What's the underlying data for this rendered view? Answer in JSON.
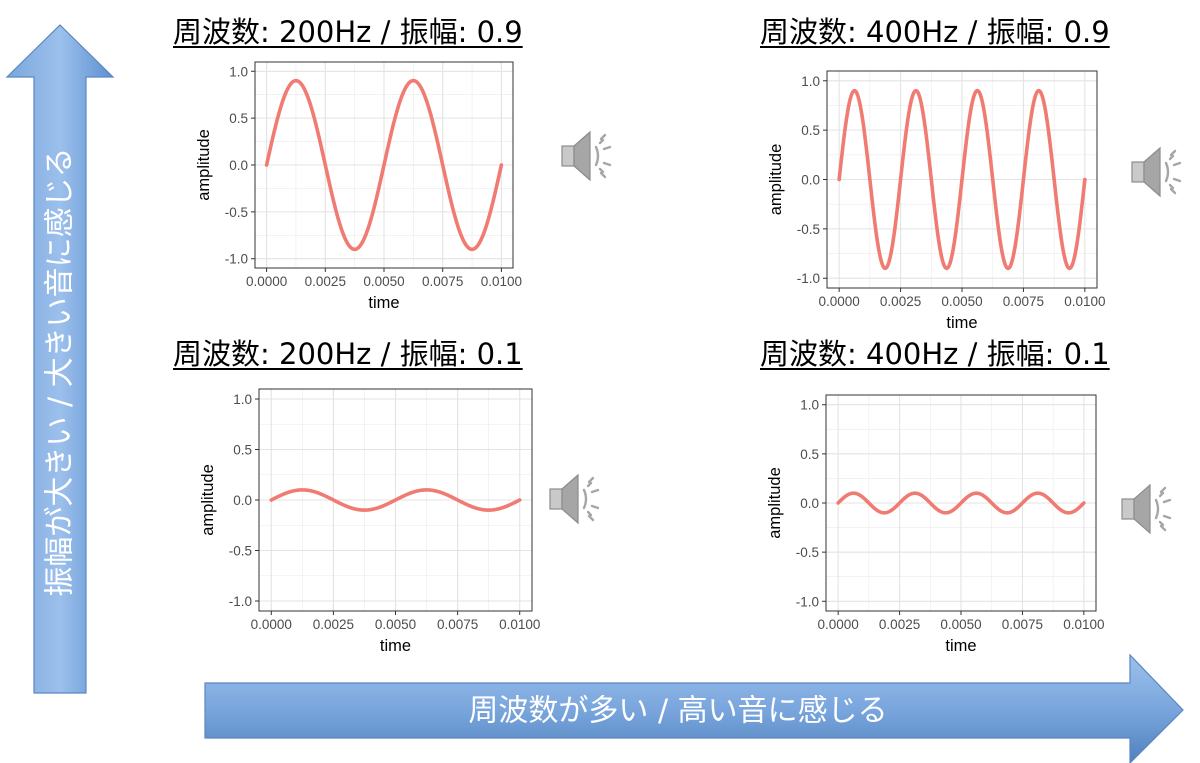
{
  "axis_labels": {
    "vertical": "振幅が大きい / 大きい音に感じる",
    "horizontal": "周波数が多い / 高い音に感じる"
  },
  "colors": {
    "wave": "#f07b72",
    "arrow_fill_light": "#8db3e2",
    "arrow_fill_dark": "#4f81bd",
    "grid": "#ebebeb",
    "speaker": "#a6a6a6"
  },
  "icons": {
    "speaker": "speaker-icon"
  },
  "panels": [
    {
      "title": "周波数: 200Hz / 振幅: 0.9"
    },
    {
      "title": "周波数: 400Hz / 振幅: 0.9"
    },
    {
      "title": "周波数: 200Hz / 振幅: 0.1"
    },
    {
      "title": "周波数: 400Hz / 振幅: 0.1"
    }
  ],
  "chart_data": [
    {
      "type": "line",
      "series": [
        {
          "function": "sine",
          "frequency_hz": 200,
          "amplitude": 0.9
        }
      ],
      "xlabel": "time",
      "ylabel": "amplitude",
      "xlim": [
        0,
        0.01
      ],
      "ylim": [
        -1,
        1
      ],
      "xticks": [
        "0.0000",
        "0.0025",
        "0.0050",
        "0.0075",
        "0.0100"
      ],
      "yticks": [
        "1.0",
        "0.5",
        "0.0",
        "-0.5",
        "-1.0"
      ],
      "grid": true
    },
    {
      "type": "line",
      "series": [
        {
          "function": "sine",
          "frequency_hz": 400,
          "amplitude": 0.9
        }
      ],
      "xlabel": "time",
      "ylabel": "amplitude",
      "xlim": [
        0,
        0.01
      ],
      "ylim": [
        -1,
        1
      ],
      "xticks": [
        "0.0000",
        "0.0025",
        "0.0050",
        "0.0075",
        "0.0100"
      ],
      "yticks": [
        "1.0",
        "0.5",
        "0.0",
        "-0.5",
        "-1.0"
      ],
      "grid": true
    },
    {
      "type": "line",
      "series": [
        {
          "function": "sine",
          "frequency_hz": 200,
          "amplitude": 0.1
        }
      ],
      "xlabel": "time",
      "ylabel": "amplitude",
      "xlim": [
        0,
        0.01
      ],
      "ylim": [
        -1,
        1
      ],
      "xticks": [
        "0.0000",
        "0.0025",
        "0.0050",
        "0.0075",
        "0.0100"
      ],
      "yticks": [
        "1.0",
        "0.5",
        "0.0",
        "-0.5",
        "-1.0"
      ],
      "grid": true
    },
    {
      "type": "line",
      "series": [
        {
          "function": "sine",
          "frequency_hz": 400,
          "amplitude": 0.1
        }
      ],
      "xlabel": "time",
      "ylabel": "amplitude",
      "xlim": [
        0,
        0.01
      ],
      "ylim": [
        -1,
        1
      ],
      "xticks": [
        "0.0000",
        "0.0025",
        "0.0050",
        "0.0075",
        "0.0100"
      ],
      "yticks": [
        "1.0",
        "0.5",
        "0.0",
        "-0.5",
        "-1.0"
      ],
      "grid": true
    }
  ]
}
